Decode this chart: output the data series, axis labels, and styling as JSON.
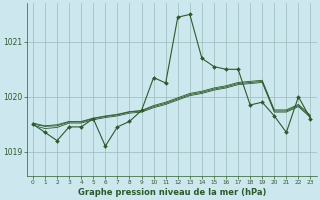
{
  "xlabel": "Graphe pression niveau de la mer (hPa)",
  "bg_color": "#cce8ee",
  "grid_color": "#99bbbb",
  "line_color": "#2d5a2d",
  "ylim": [
    1018.55,
    1021.7
  ],
  "xlim": [
    -0.5,
    23.5
  ],
  "yticks": [
    1019,
    1020,
    1021
  ],
  "xticks": [
    0,
    1,
    2,
    3,
    4,
    5,
    6,
    7,
    8,
    9,
    10,
    11,
    12,
    13,
    14,
    15,
    16,
    17,
    18,
    19,
    20,
    21,
    22,
    23
  ],
  "main_series": [
    1019.5,
    1019.35,
    1019.2,
    1019.45,
    1019.45,
    1019.6,
    1019.1,
    1019.45,
    1019.55,
    1019.75,
    1020.35,
    1020.25,
    1021.45,
    1021.5,
    1020.7,
    1020.55,
    1020.5,
    1020.5,
    1019.85,
    1019.9,
    1019.65,
    1019.35,
    1020.0,
    1019.6
  ],
  "trend1": [
    1019.48,
    1019.42,
    1019.44,
    1019.52,
    1019.52,
    1019.58,
    1019.62,
    1019.65,
    1019.7,
    1019.72,
    1019.8,
    1019.86,
    1019.94,
    1020.02,
    1020.06,
    1020.12,
    1020.16,
    1020.22,
    1020.24,
    1020.26,
    1019.72,
    1019.72,
    1019.82,
    1019.62
  ],
  "trend2": [
    1019.5,
    1019.46,
    1019.47,
    1019.54,
    1019.54,
    1019.6,
    1019.64,
    1019.67,
    1019.72,
    1019.74,
    1019.82,
    1019.88,
    1019.96,
    1020.04,
    1020.08,
    1020.14,
    1020.18,
    1020.24,
    1020.26,
    1020.28,
    1019.74,
    1019.74,
    1019.84,
    1019.64
  ],
  "trend3": [
    1019.52,
    1019.47,
    1019.49,
    1019.55,
    1019.55,
    1019.61,
    1019.65,
    1019.68,
    1019.73,
    1019.75,
    1019.84,
    1019.9,
    1019.98,
    1020.06,
    1020.1,
    1020.16,
    1020.2,
    1020.26,
    1020.28,
    1020.3,
    1019.76,
    1019.76,
    1019.86,
    1019.66
  ]
}
